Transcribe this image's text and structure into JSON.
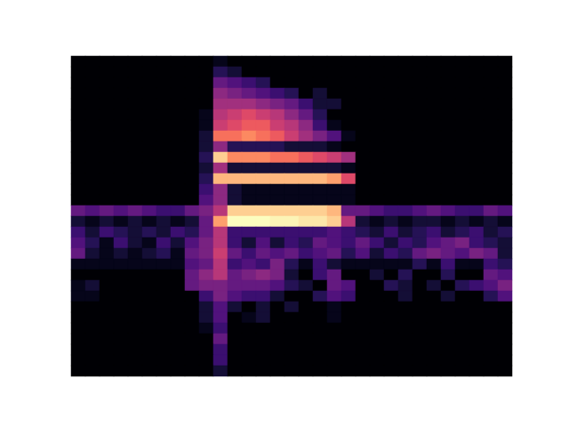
{
  "chart_data": {
    "type": "heatmap",
    "tick_labels": false,
    "color": "magma",
    "zlim": [
      0,
      1
    ],
    "cells": [
      [
        0,
        0,
        0,
        0,
        0,
        0,
        0,
        0,
        0,
        0,
        0.05,
        0,
        0,
        0,
        0,
        0,
        0,
        0,
        0,
        0,
        0,
        0,
        0,
        0,
        0,
        0,
        0,
        0,
        0,
        0,
        0
      ],
      [
        0,
        0,
        0,
        0,
        0,
        0,
        0,
        0,
        0,
        0,
        0.15,
        0.1,
        0,
        0,
        0,
        0,
        0,
        0,
        0,
        0,
        0,
        0,
        0,
        0,
        0,
        0,
        0,
        0,
        0,
        0,
        0
      ],
      [
        0,
        0,
        0,
        0,
        0,
        0,
        0,
        0,
        0,
        0,
        0.3,
        0.25,
        0.2,
        0.15,
        0,
        0,
        0,
        0,
        0,
        0,
        0,
        0,
        0,
        0,
        0,
        0,
        0,
        0,
        0,
        0,
        0
      ],
      [
        0,
        0,
        0,
        0,
        0,
        0,
        0,
        0,
        0,
        0,
        0.4,
        0.35,
        0.3,
        0.25,
        0.2,
        0.15,
        0,
        0.1,
        0,
        0,
        0,
        0,
        0,
        0,
        0,
        0,
        0,
        0,
        0,
        0,
        0
      ],
      [
        0,
        0,
        0,
        0,
        0,
        0,
        0,
        0,
        0,
        0,
        0.45,
        0.45,
        0.45,
        0.4,
        0.35,
        0.3,
        0.2,
        0.1,
        0.1,
        0,
        0,
        0,
        0,
        0,
        0,
        0,
        0,
        0,
        0,
        0,
        0
      ],
      [
        0,
        0,
        0,
        0,
        0,
        0,
        0,
        0,
        0,
        0.05,
        0.5,
        0.55,
        0.6,
        0.55,
        0.5,
        0.4,
        0.3,
        0.15,
        0,
        0,
        0,
        0,
        0,
        0,
        0,
        0,
        0,
        0,
        0,
        0,
        0
      ],
      [
        0,
        0,
        0,
        0,
        0,
        0,
        0,
        0,
        0,
        0.05,
        0.55,
        0.6,
        0.65,
        0.65,
        0.55,
        0.5,
        0.4,
        0.2,
        0.05,
        0,
        0,
        0,
        0,
        0,
        0,
        0,
        0,
        0,
        0,
        0,
        0
      ],
      [
        0,
        0,
        0,
        0,
        0,
        0,
        0,
        0,
        0,
        0.1,
        0.7,
        0.7,
        0.75,
        0.7,
        0.65,
        0.55,
        0.45,
        0.35,
        0.25,
        0.05,
        0,
        0,
        0,
        0,
        0,
        0,
        0,
        0,
        0,
        0,
        0
      ],
      [
        0,
        0,
        0,
        0,
        0,
        0,
        0,
        0,
        0,
        0.1,
        0.4,
        0.15,
        0.15,
        0.15,
        0.15,
        0.1,
        0.1,
        0.1,
        0.05,
        0,
        0,
        0,
        0,
        0,
        0,
        0,
        0,
        0,
        0,
        0,
        0
      ],
      [
        0,
        0,
        0,
        0,
        0,
        0,
        0,
        0,
        0,
        0.15,
        0.9,
        0.75,
        0.75,
        0.75,
        0.7,
        0.7,
        0.65,
        0.6,
        0.55,
        0.45,
        0,
        0,
        0,
        0,
        0,
        0,
        0,
        0,
        0,
        0,
        0
      ],
      [
        0,
        0,
        0,
        0,
        0,
        0,
        0,
        0,
        0,
        0.1,
        0.45,
        0.1,
        0.1,
        0.1,
        0.1,
        0.1,
        0.1,
        0.1,
        0.1,
        0.05,
        0,
        0,
        0,
        0,
        0,
        0,
        0,
        0,
        0,
        0,
        0
      ],
      [
        0,
        0,
        0,
        0,
        0,
        0,
        0,
        0,
        0,
        0.15,
        0.85,
        0.85,
        0.85,
        0.85,
        0.85,
        0.85,
        0.85,
        0.85,
        0.8,
        0.6,
        0,
        0,
        0,
        0,
        0,
        0,
        0,
        0,
        0,
        0,
        0
      ],
      [
        0,
        0,
        0,
        0,
        0,
        0,
        0,
        0,
        0,
        0.2,
        0.4,
        0.1,
        0.05,
        0.05,
        0.05,
        0.05,
        0.05,
        0.05,
        0.05,
        0.05,
        0,
        0,
        0,
        0,
        0,
        0,
        0,
        0,
        0,
        0,
        0
      ],
      [
        0,
        0,
        0,
        0,
        0,
        0,
        0,
        0,
        0,
        0.25,
        0.4,
        0.1,
        0.05,
        0.05,
        0.05,
        0.05,
        0.05,
        0.05,
        0.05,
        0.05,
        0,
        0,
        0,
        0,
        0,
        0,
        0,
        0,
        0,
        0,
        0
      ],
      [
        0.3,
        0.25,
        0.3,
        0.25,
        0.3,
        0.25,
        0.2,
        0.2,
        0.3,
        0.35,
        0.5,
        0.9,
        0.9,
        0.9,
        0.9,
        0.9,
        0.9,
        0.9,
        0.85,
        0.3,
        0.3,
        0.25,
        0.2,
        0.2,
        0.25,
        0.3,
        0.25,
        0.2,
        0.2,
        0.3,
        0.25
      ],
      [
        0.1,
        0.05,
        0.1,
        0.05,
        0.1,
        0.05,
        0.1,
        0.05,
        0.1,
        0.3,
        0.8,
        1,
        1,
        1,
        0.98,
        0.98,
        0.95,
        0.95,
        0.9,
        0.5,
        0.1,
        0.05,
        0.1,
        0.05,
        0.1,
        0.1,
        0.05,
        0.1,
        0.05,
        0.1,
        0.05
      ],
      [
        0.2,
        0.1,
        0.2,
        0.15,
        0.1,
        0.15,
        0.1,
        0.2,
        0.15,
        0.3,
        0.5,
        0.2,
        0.2,
        0.2,
        0.2,
        0.2,
        0.2,
        0.2,
        0.25,
        0.2,
        0.15,
        0.1,
        0.2,
        0.1,
        0.15,
        0.2,
        0.1,
        0.15,
        0.2,
        0.1,
        0.15
      ],
      [
        0.25,
        0.15,
        0.05,
        0.2,
        0.1,
        0.05,
        0.2,
        0.1,
        0.25,
        0.35,
        0.5,
        0.2,
        0.1,
        0.25,
        0.1,
        0.2,
        0.15,
        0.3,
        0.25,
        0.2,
        0.3,
        0.2,
        0.1,
        0.2,
        0.15,
        0.25,
        0.3,
        0.35,
        0.2,
        0.15,
        0.1
      ],
      [
        0.3,
        0.1,
        0.05,
        0.1,
        0.05,
        0.1,
        0.15,
        0.05,
        0.3,
        0.35,
        0.55,
        0.3,
        0.2,
        0.3,
        0.25,
        0.3,
        0.2,
        0.25,
        0.3,
        0.15,
        0.25,
        0.1,
        0.2,
        0.15,
        0.3,
        0.35,
        0.3,
        0.25,
        0.35,
        0.3,
        0.1
      ],
      [
        0.05,
        0.05,
        0.05,
        0.05,
        0.05,
        0.05,
        0.05,
        0.05,
        0.25,
        0.3,
        0.5,
        0.2,
        0.25,
        0.2,
        0.35,
        0.15,
        0.05,
        0.2,
        0.1,
        0.05,
        0.05,
        0.05,
        0.05,
        0.05,
        0.15,
        0.05,
        0.2,
        0.05,
        0.05,
        0.2,
        0.15
      ],
      [
        0,
        0,
        0,
        0,
        0,
        0,
        0,
        0,
        0.3,
        0.4,
        0.5,
        0.3,
        0.35,
        0.4,
        0.35,
        0.1,
        0,
        0.2,
        0.3,
        0,
        0,
        0.1,
        0,
        0.15,
        0,
        0,
        0.15,
        0,
        0,
        0.3,
        0.25
      ],
      [
        0.05,
        0.1,
        0,
        0,
        0,
        0,
        0,
        0,
        0.3,
        0.35,
        0.35,
        0.3,
        0.3,
        0.3,
        0.25,
        0.15,
        0.1,
        0,
        0.3,
        0.25,
        0,
        0,
        0.15,
        0.1,
        0,
        0.1,
        0,
        0.15,
        0.2,
        0.25,
        0.35
      ],
      [
        0.05,
        0.05,
        0,
        0,
        0,
        0,
        0,
        0,
        0,
        0.2,
        0.35,
        0.25,
        0.2,
        0.2,
        0.1,
        0,
        0,
        0.15,
        0.25,
        0.2,
        0,
        0,
        0,
        0.1,
        0,
        0,
        0.1,
        0,
        0,
        0.15,
        0.25
      ],
      [
        0,
        0,
        0,
        0,
        0,
        0,
        0,
        0,
        0,
        0.1,
        0.25,
        0.1,
        0,
        0.1,
        0,
        0.1,
        0,
        0,
        0.05,
        0,
        0,
        0,
        0,
        0,
        0,
        0,
        0,
        0,
        0,
        0,
        0
      ],
      [
        0,
        0,
        0,
        0,
        0,
        0,
        0,
        0,
        0,
        0.1,
        0.25,
        0,
        0.05,
        0.1,
        0,
        0,
        0,
        0,
        0.05,
        0,
        0,
        0,
        0,
        0,
        0,
        0,
        0,
        0,
        0,
        0,
        0
      ],
      [
        0,
        0,
        0,
        0,
        0,
        0,
        0,
        0,
        0,
        0.05,
        0.2,
        0,
        0,
        0,
        0,
        0,
        0,
        0,
        0,
        0,
        0,
        0,
        0,
        0,
        0,
        0,
        0,
        0,
        0,
        0,
        0
      ],
      [
        0,
        0,
        0,
        0,
        0,
        0,
        0,
        0,
        0,
        0,
        0.3,
        0,
        0,
        0,
        0,
        0,
        0,
        0,
        0,
        0,
        0,
        0,
        0,
        0,
        0,
        0,
        0,
        0,
        0,
        0,
        0
      ],
      [
        0,
        0,
        0,
        0,
        0,
        0,
        0,
        0,
        0,
        0,
        0.2,
        0,
        0,
        0,
        0,
        0,
        0,
        0,
        0,
        0,
        0,
        0,
        0,
        0,
        0,
        0,
        0,
        0,
        0,
        0,
        0
      ],
      [
        0,
        0,
        0,
        0,
        0,
        0,
        0,
        0,
        0,
        0,
        0.2,
        0,
        0,
        0,
        0,
        0,
        0,
        0,
        0,
        0,
        0,
        0,
        0,
        0,
        0,
        0,
        0,
        0,
        0,
        0,
        0
      ],
      [
        0,
        0,
        0,
        0,
        0,
        0,
        0,
        0,
        0,
        0,
        0.1,
        0,
        0,
        0,
        0,
        0,
        0,
        0,
        0,
        0,
        0,
        0,
        0,
        0,
        0,
        0,
        0,
        0,
        0,
        0,
        0
      ]
    ]
  }
}
